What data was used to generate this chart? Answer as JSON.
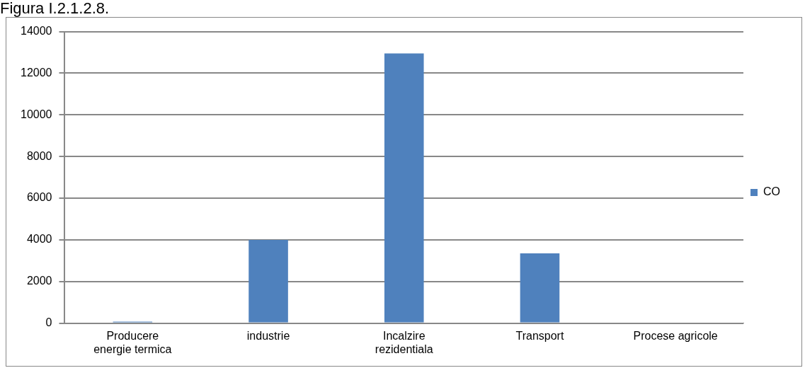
{
  "chart_data": {
    "type": "bar",
    "title": "Figura I.2.1.2.8.",
    "categories": [
      "Producere energie termica",
      "industrie",
      "Incalzire rezidentiala",
      "Transport",
      "Procese agricole"
    ],
    "series": [
      {
        "name": "CO",
        "color": "#4f81bd",
        "values": [
          70,
          4000,
          12950,
          3350,
          0
        ]
      }
    ],
    "ylim": [
      0,
      14000
    ],
    "yticks": [
      0,
      2000,
      4000,
      6000,
      8000,
      10000,
      12000,
      14000
    ],
    "grid": "y",
    "legend": "right"
  }
}
